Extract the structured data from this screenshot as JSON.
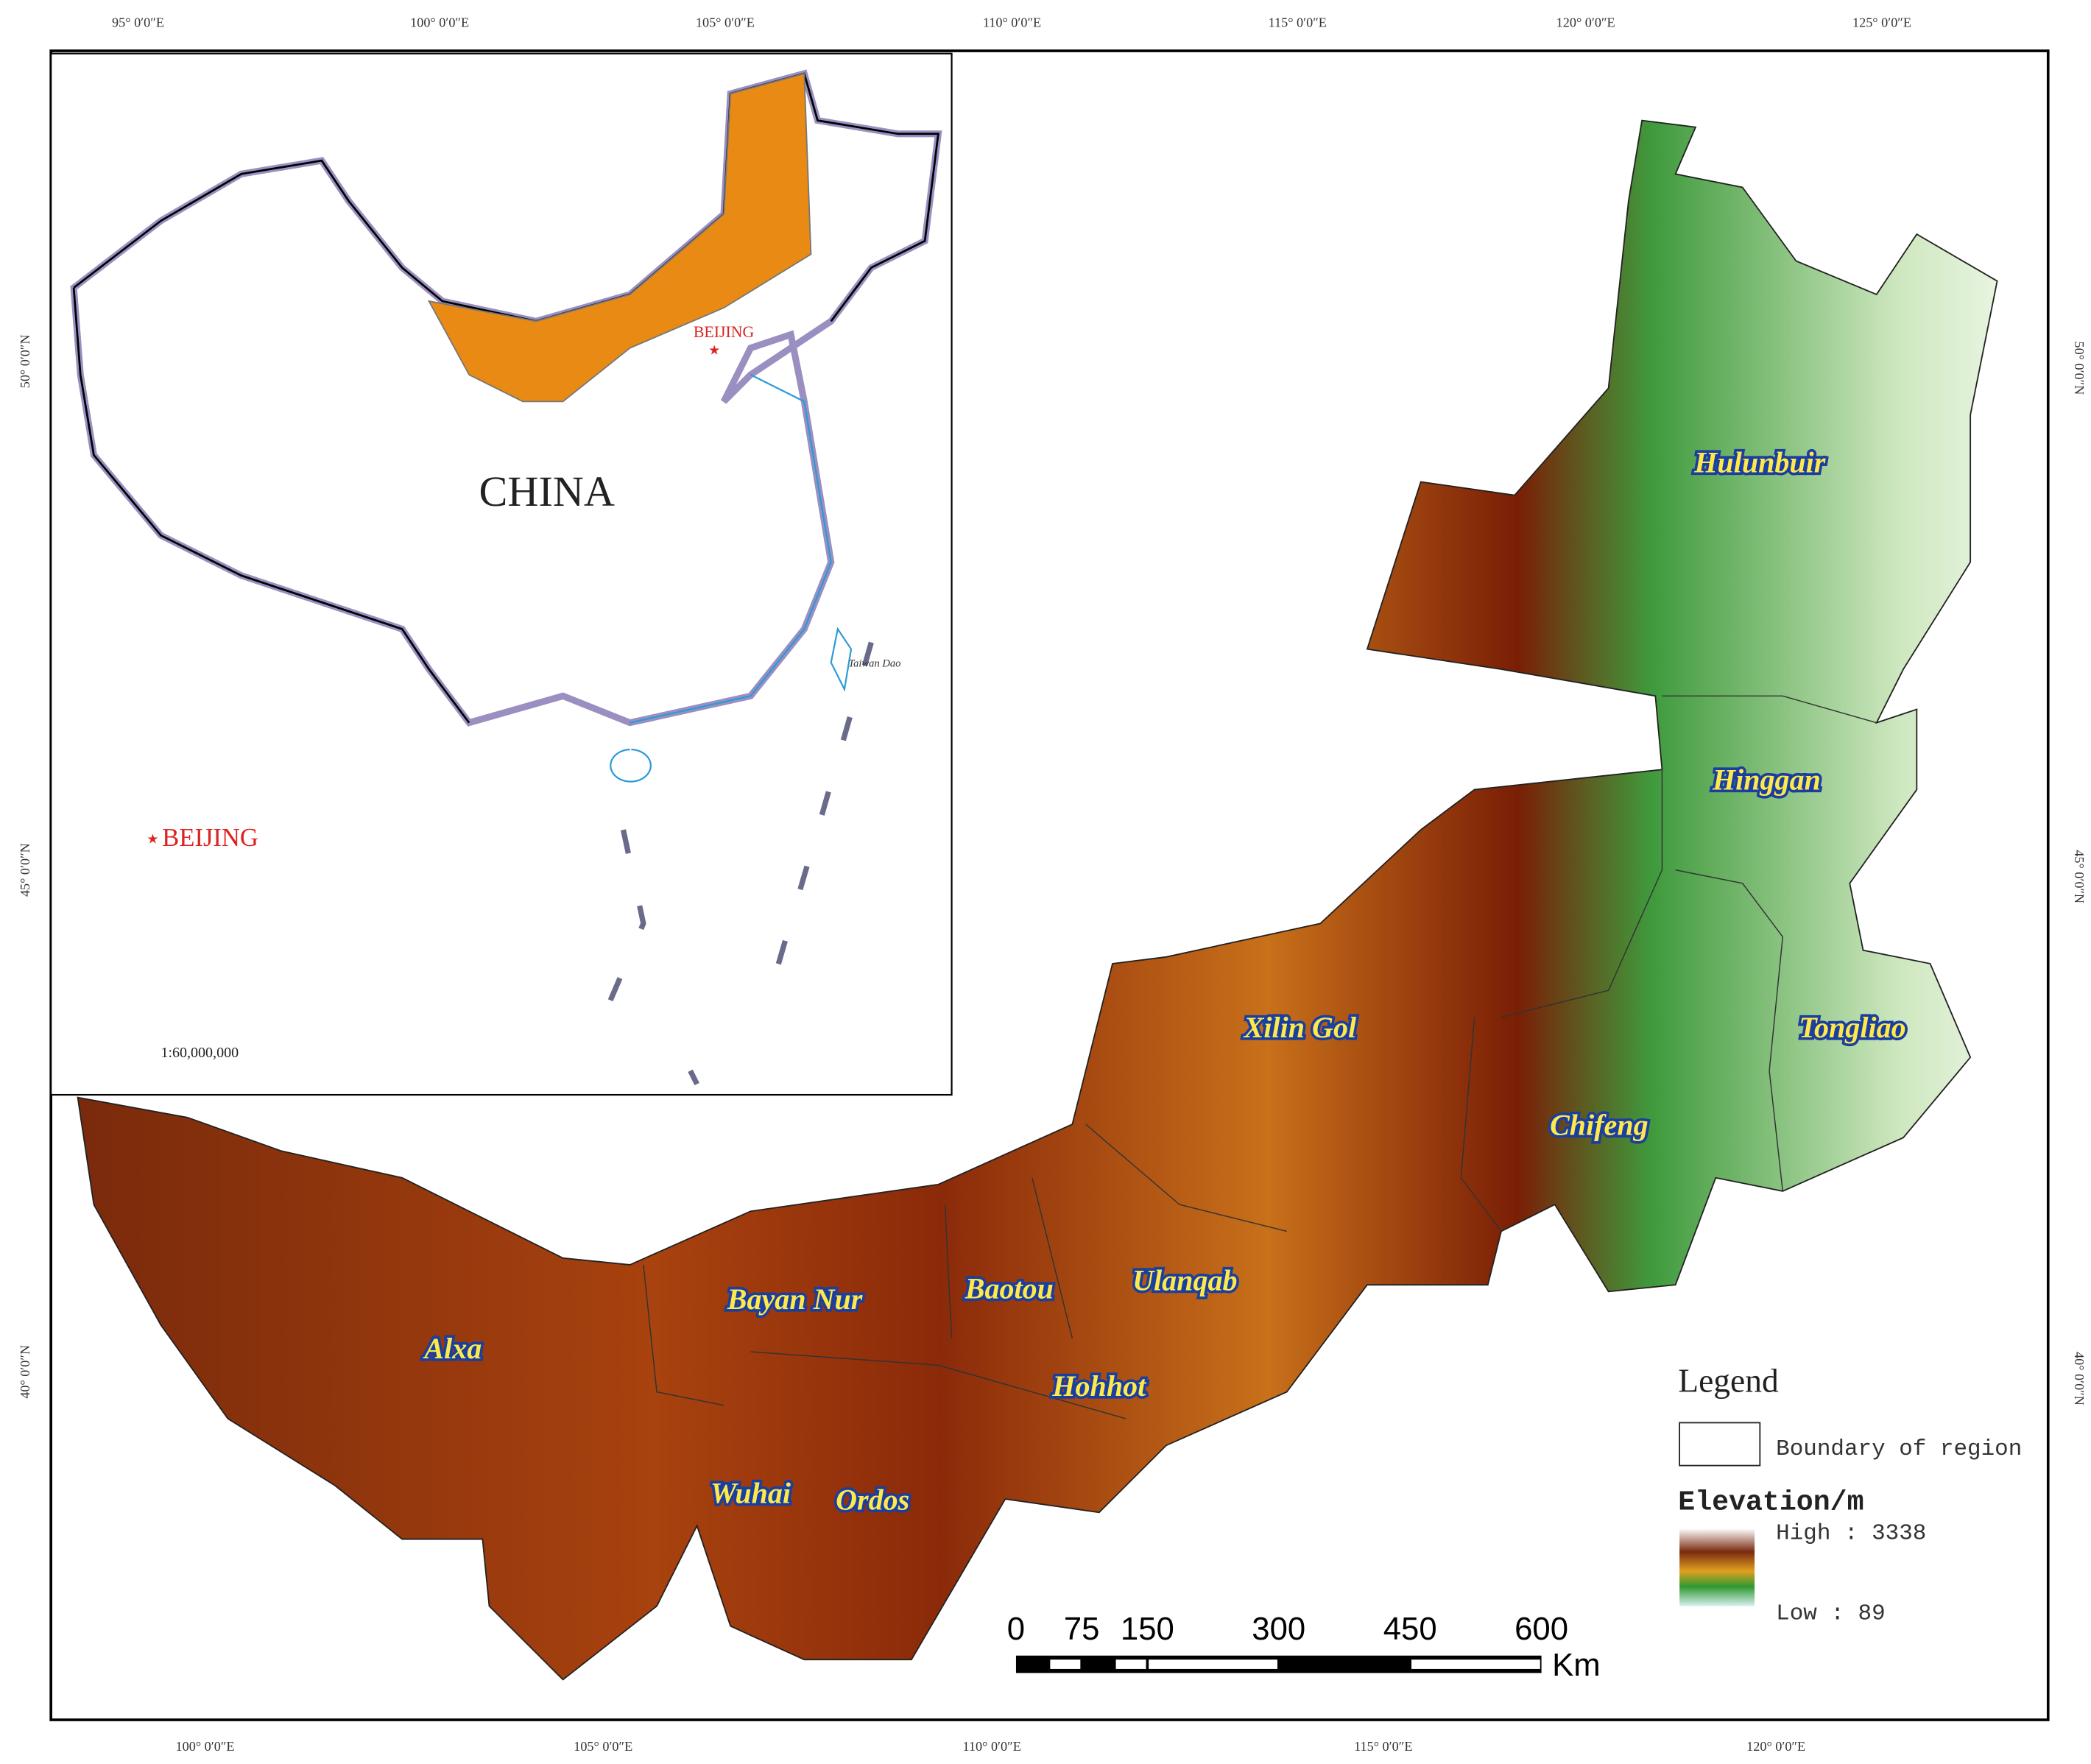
{
  "top_axis_labels": [
    "95° 0′0″E",
    "100° 0′0″E",
    "105° 0′0″E",
    "110° 0′0″E",
    "115° 0′0″E",
    "120° 0′0″E",
    "125° 0′0″E"
  ],
  "bottom_axis_labels": [
    "100° 0′0″E",
    "105° 0′0″E",
    "110° 0′0″E",
    "115° 0′0″E",
    "120° 0′0″E"
  ],
  "left_axis_labels": [
    "50° 0′0″N",
    "45° 0′0″N",
    "40° 0′0″N"
  ],
  "right_axis_labels": [
    "50° 0′0″N",
    "45° 0′0″N",
    "40° 0′0″N"
  ],
  "inset": {
    "country": "CHINA",
    "capital": "BEIJING",
    "capital_legend": "BEIJING",
    "island": "Taiwan Dao",
    "scale": "1:60,000,000"
  },
  "regions": [
    "Hulunbuir",
    "Hinggan",
    "Tongliao",
    "Xilin Gol",
    "Chifeng",
    "Ulanqab",
    "Baotou",
    "Bayan Nur",
    "Alxa",
    "Hohhot",
    "Wuhai",
    "Ordos"
  ],
  "legend": {
    "title": "Legend",
    "boundary": "Boundary of region",
    "elevation_title": "Elevation/m",
    "high": "High : 3338",
    "low": "Low : 89"
  },
  "scale_bar": {
    "ticks": [
      0,
      75,
      150,
      300,
      450,
      600
    ],
    "unit": "Km"
  }
}
